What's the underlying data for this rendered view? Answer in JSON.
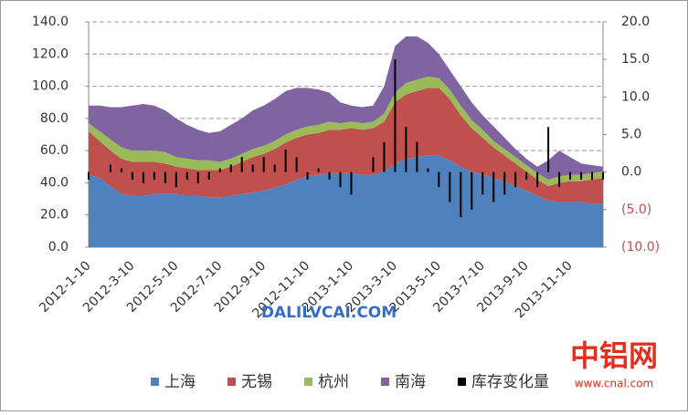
{
  "chart_data": {
    "type": "stacked-area-bar",
    "categories": [
      "2012-1-10",
      null,
      null,
      null,
      "2012-3-10",
      null,
      null,
      null,
      "2012-5-10",
      null,
      null,
      null,
      "2012-7-10",
      null,
      null,
      null,
      "2012-9-10",
      null,
      null,
      null,
      "2012-11-10",
      null,
      null,
      null,
      "2013-1-10",
      null,
      null,
      null,
      "2013-3-10",
      null,
      null,
      null,
      "2013-5-10",
      null,
      null,
      null,
      "2013-7-10",
      null,
      null,
      null,
      "2013-9-10",
      null,
      null,
      null,
      "2013-11-10",
      null,
      null,
      null
    ],
    "series": [
      {
        "name": "上海",
        "color": "#4f81bd",
        "values": [
          45,
          43,
          38,
          33,
          32,
          32,
          33,
          33,
          33,
          32,
          32,
          31,
          31,
          32,
          33,
          34,
          35,
          37,
          39,
          42,
          44,
          45,
          46,
          46,
          46,
          45,
          45,
          47,
          52,
          55,
          56,
          57,
          57,
          54,
          50,
          47,
          45,
          43,
          41,
          38,
          35,
          32,
          29,
          28,
          28,
          28,
          27,
          27
        ]
      },
      {
        "name": "无锡",
        "color": "#c0504d",
        "values": [
          27,
          23,
          22,
          22,
          21,
          21,
          20,
          19,
          17,
          17,
          16,
          17,
          17,
          18,
          20,
          22,
          23,
          24,
          26,
          26,
          26,
          26,
          27,
          27,
          28,
          28,
          29,
          31,
          38,
          40,
          41,
          42,
          42,
          38,
          32,
          27,
          23,
          19,
          16,
          14,
          12,
          10,
          9,
          12,
          13,
          13,
          15,
          16
        ]
      },
      {
        "name": "杭州",
        "color": "#9bbb59",
        "values": [
          5,
          6,
          7,
          7,
          7,
          7,
          7,
          7,
          6,
          6,
          6,
          6,
          5,
          5,
          5,
          5,
          5,
          5,
          5,
          5,
          5,
          5,
          5,
          4,
          4,
          4,
          4,
          5,
          6,
          7,
          7,
          7,
          6,
          6,
          6,
          5,
          5,
          4,
          4,
          4,
          4,
          4,
          4,
          4,
          4,
          4,
          4,
          4
        ]
      },
      {
        "name": "南海",
        "color": "#8064a2",
        "values": [
          11,
          16,
          20,
          25,
          28,
          29,
          28,
          26,
          24,
          21,
          19,
          17,
          19,
          21,
          22,
          24,
          25,
          26,
          27,
          26,
          24,
          22,
          18,
          13,
          10,
          10,
          10,
          17,
          29,
          29,
          27,
          21,
          15,
          12,
          12,
          11,
          9,
          9,
          7,
          5,
          4,
          4,
          12,
          16,
          11,
          7,
          5,
          3
        ]
      },
      {
        "name": "库存变化量",
        "color": "#000000",
        "axis": "y2",
        "values": [
          -1,
          0,
          1,
          0.5,
          -1,
          -1.5,
          -1,
          -1.5,
          -2,
          -1,
          -1.5,
          -1,
          0.5,
          1,
          2,
          1,
          2,
          1,
          3,
          2,
          -1,
          0.5,
          -1,
          -2,
          -3,
          0,
          2,
          4,
          15,
          6,
          4,
          0.5,
          -2,
          -4,
          -6,
          -5,
          -3,
          -4,
          -3,
          -2,
          -1,
          -2,
          6,
          -2,
          -1,
          -1,
          -1,
          -1
        ]
      }
    ],
    "ylim": [
      0,
      140
    ],
    "yticks": [
      {
        "value": 0,
        "label": "0.0"
      },
      {
        "value": 20,
        "label": "20.0"
      },
      {
        "value": 40,
        "label": "40.0"
      },
      {
        "value": 60,
        "label": "60.0"
      },
      {
        "value": 80,
        "label": "80.0"
      },
      {
        "value": 100,
        "label": "100.0"
      },
      {
        "value": 120,
        "label": "120.0"
      },
      {
        "value": 140,
        "label": "140.0"
      }
    ],
    "y2lim": [
      -10,
      20
    ],
    "y2ticks": [
      {
        "value": -10,
        "label": "(10.0)"
      },
      {
        "value": -5,
        "label": "(5.0)"
      },
      {
        "value": 0,
        "label": "0.0"
      },
      {
        "value": 5,
        "label": "5.0"
      },
      {
        "value": 10,
        "label": "10.0"
      },
      {
        "value": 15,
        "label": "15.0"
      },
      {
        "value": 20,
        "label": "20.0"
      }
    ],
    "y2_negative_color": "#c0504d",
    "grid": true,
    "legend": "bottom",
    "watermark": "DALILVCAI.COM",
    "logo": {
      "name": "中铝网",
      "url": "www.cnal.com"
    }
  }
}
